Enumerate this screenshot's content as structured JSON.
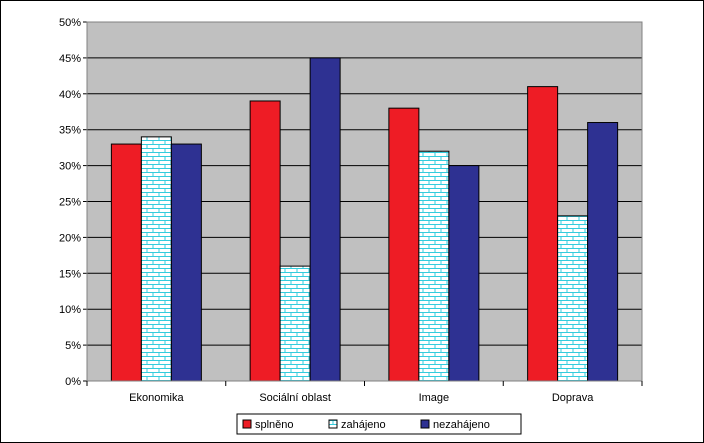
{
  "chart_data": {
    "type": "bar",
    "categories": [
      "Ekonomika",
      "Sociální oblast",
      "Image",
      "Doprava"
    ],
    "series": [
      {
        "name": "splněno",
        "values": [
          33,
          39,
          38,
          41
        ],
        "color": "#ee1c25",
        "pattern": "solid"
      },
      {
        "name": "zahájeno",
        "values": [
          34,
          16,
          32,
          23
        ],
        "color": "#33ccdd",
        "pattern": "brick"
      },
      {
        "name": "nezahájeno",
        "values": [
          33,
          45,
          30,
          36
        ],
        "color": "#2e3192",
        "pattern": "solid"
      }
    ],
    "ylim": [
      0,
      50
    ],
    "ytick_step": 5,
    "ytick_suffix": "%",
    "grid": true,
    "plot_background": "#c0c0c0",
    "legend_position": "bottom-center"
  }
}
